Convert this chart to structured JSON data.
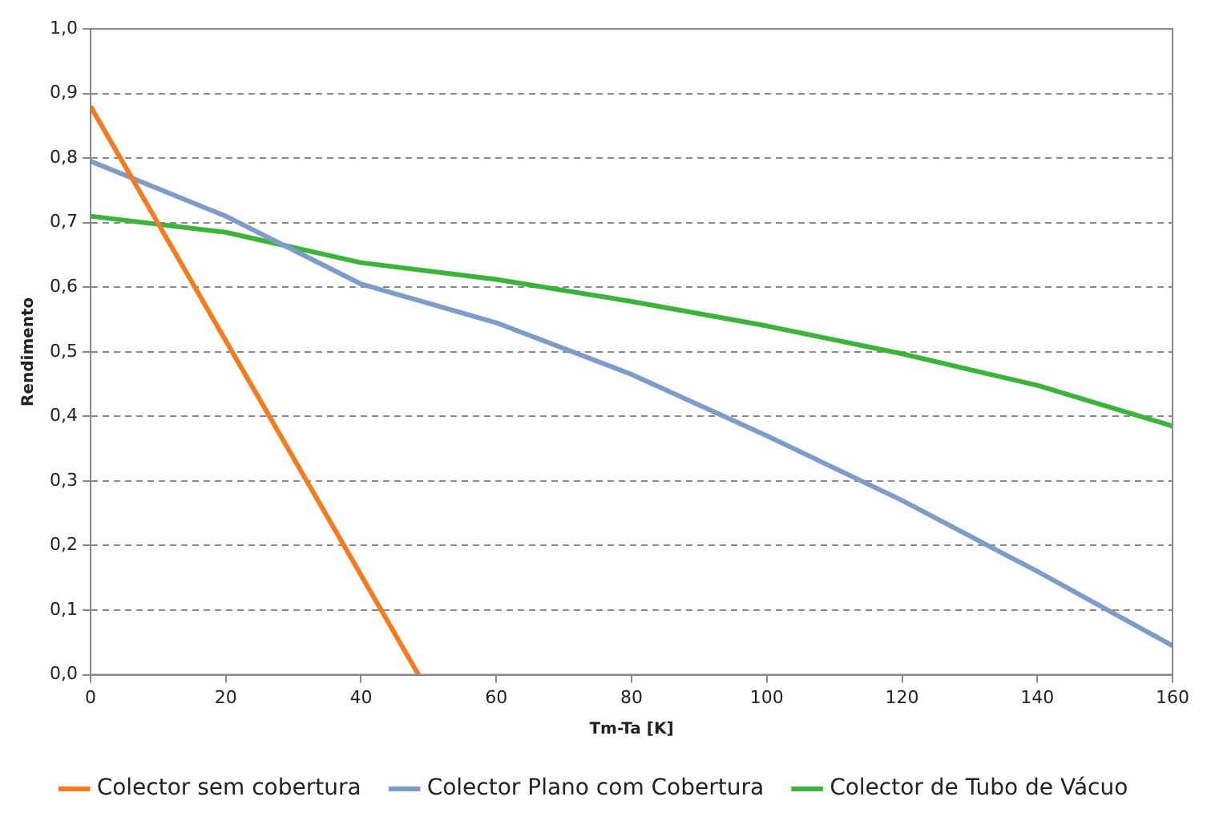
{
  "chart_data": {
    "type": "line",
    "xlabel": "Tm-Ta [K]",
    "ylabel": "Rendimento",
    "xlim": [
      0,
      160
    ],
    "xticks": [
      0,
      20,
      40,
      60,
      80,
      100,
      120,
      140,
      160
    ],
    "ylim": [
      0,
      1
    ],
    "yticks": [
      {
        "value": 0,
        "label": "0,0"
      },
      {
        "value": 0.1,
        "label": "0,1"
      },
      {
        "value": 0.2,
        "label": "0,2"
      },
      {
        "value": 0.3,
        "label": "0,3"
      },
      {
        "value": 0.4,
        "label": "0,4"
      },
      {
        "value": 0.5,
        "label": "0,5"
      },
      {
        "value": 0.6,
        "label": "0,6"
      },
      {
        "value": 0.7,
        "label": "0,7"
      },
      {
        "value": 0.8,
        "label": "0,8"
      },
      {
        "value": 0.9,
        "label": "0,9"
      },
      {
        "value": 1,
        "label": "1,0"
      }
    ],
    "grid": "y",
    "legend": "bottom",
    "marker": "none",
    "line_style": "solid",
    "series": [
      {
        "name": "Colector sem cobertura",
        "color": "#f47b20",
        "x": [
          0,
          48.5
        ],
        "values": [
          0.88,
          0
        ]
      },
      {
        "name": "Colector Plano com Cobertura",
        "color": "#7f9bc8",
        "x": [
          0,
          20,
          40,
          60,
          80,
          100,
          120,
          140,
          160
        ],
        "values": [
          0.795,
          0.71,
          0.605,
          0.545,
          0.465,
          0.37,
          0.27,
          0.16,
          0.045
        ]
      },
      {
        "name": "Colector de Tubo de Vácuo",
        "color": "#3cb43c",
        "x": [
          0,
          20,
          40,
          60,
          80,
          100,
          120,
          140,
          160
        ],
        "values": [
          0.71,
          0.685,
          0.638,
          0.612,
          0.578,
          0.54,
          0.497,
          0.448,
          0.385
        ]
      }
    ]
  }
}
